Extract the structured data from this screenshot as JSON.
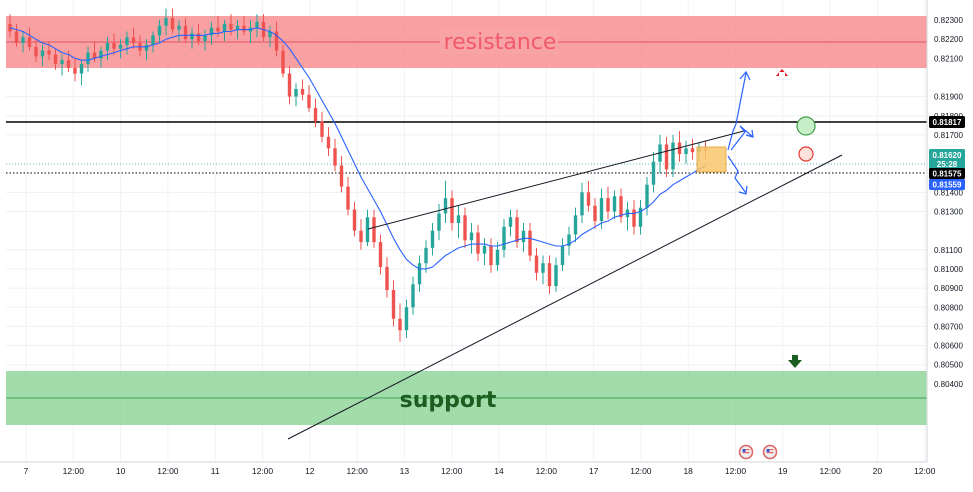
{
  "chart_data": {
    "type": "candlestick",
    "title": "",
    "ylim": [
      0.8038,
      0.8236
    ],
    "y_ticks": [
      "0.82300",
      "0.82200",
      "0.82100",
      "0.81900",
      "0.81800",
      "0.81700",
      "0.81400",
      "0.81300",
      "0.81100",
      "0.81000",
      "0.80900",
      "0.80800",
      "0.80700",
      "0.80600",
      "0.80500",
      "0.80400"
    ],
    "y_tick_values": [
      0.823,
      0.822,
      0.821,
      0.819,
      0.818,
      0.817,
      0.814,
      0.813,
      0.811,
      0.81,
      0.809,
      0.808,
      0.807,
      0.806,
      0.805,
      0.804
    ],
    "x_ticks": [
      "7",
      "12:00",
      "10",
      "12:00",
      "11",
      "12:00",
      "12",
      "12:00",
      "13",
      "12:00",
      "14",
      "12:00",
      "17",
      "12:00",
      "18",
      "12:00",
      "19",
      "12:00",
      "20",
      "12:00"
    ],
    "zones": [
      {
        "name": "resistance",
        "label": "resistance",
        "from": 0.8209,
        "to": 0.8234,
        "color": "#f77c80",
        "text_color": "#f05a6a"
      },
      {
        "name": "support",
        "label": "support",
        "from": 0.8039,
        "to": 0.8066,
        "color": "#7fce8a",
        "text_color": "#1b5e20"
      }
    ],
    "levels": [
      {
        "name": "key-level",
        "value": 0.81817,
        "label": "0.81817",
        "color": "#000000",
        "style": "solid"
      },
      {
        "name": "last-close",
        "value": 0.81575,
        "label": "0.81575",
        "color": "#000000",
        "style": "dotted"
      }
    ],
    "price_tags": [
      {
        "name": "current-price",
        "value": 0.8162,
        "label": "0.81620",
        "sub": "25:28",
        "color": "#26a69a"
      },
      {
        "name": "ma-value",
        "value": 0.81559,
        "label": "0.81559",
        "color": "#2962ff"
      }
    ],
    "series": [
      {
        "name": "candles",
        "ohlc": [
          [
            0.8228,
            0.8233,
            0.8221,
            0.8224
          ],
          [
            0.8224,
            0.8228,
            0.8216,
            0.8218
          ],
          [
            0.8218,
            0.8224,
            0.8213,
            0.8221
          ],
          [
            0.8221,
            0.8226,
            0.8214,
            0.8216
          ],
          [
            0.8216,
            0.822,
            0.8208,
            0.8211
          ],
          [
            0.8211,
            0.8217,
            0.8206,
            0.8214
          ],
          [
            0.8214,
            0.8219,
            0.8209,
            0.8212
          ],
          [
            0.8212,
            0.8215,
            0.8204,
            0.8207
          ],
          [
            0.8207,
            0.8212,
            0.8201,
            0.8209
          ],
          [
            0.8209,
            0.8214,
            0.8203,
            0.8205
          ],
          [
            0.8205,
            0.821,
            0.8198,
            0.8202
          ],
          [
            0.8202,
            0.8209,
            0.8196,
            0.8207
          ],
          [
            0.8207,
            0.8216,
            0.8203,
            0.8213
          ],
          [
            0.8213,
            0.8219,
            0.8208,
            0.821
          ],
          [
            0.821,
            0.8216,
            0.8205,
            0.8214
          ],
          [
            0.8214,
            0.8221,
            0.8209,
            0.8218
          ],
          [
            0.8218,
            0.8223,
            0.8212,
            0.8215
          ],
          [
            0.8215,
            0.822,
            0.821,
            0.8217
          ],
          [
            0.8217,
            0.8224,
            0.8212,
            0.8221
          ],
          [
            0.8221,
            0.8226,
            0.8215,
            0.8218
          ],
          [
            0.8218,
            0.8222,
            0.8211,
            0.8214
          ],
          [
            0.8214,
            0.822,
            0.8209,
            0.8217
          ],
          [
            0.8217,
            0.8224,
            0.8213,
            0.8222
          ],
          [
            0.8222,
            0.823,
            0.8218,
            0.8227
          ],
          [
            0.8227,
            0.8236,
            0.8222,
            0.8231
          ],
          [
            0.8231,
            0.8236,
            0.8223,
            0.8225
          ],
          [
            0.8225,
            0.823,
            0.8219,
            0.8227
          ],
          [
            0.8227,
            0.8231,
            0.8218,
            0.822
          ],
          [
            0.822,
            0.8226,
            0.8215,
            0.8223
          ],
          [
            0.8223,
            0.8228,
            0.8217,
            0.8219
          ],
          [
            0.8219,
            0.8225,
            0.8214,
            0.8222
          ],
          [
            0.8222,
            0.8229,
            0.8217,
            0.8226
          ],
          [
            0.8226,
            0.8232,
            0.8221,
            0.8224
          ],
          [
            0.8224,
            0.823,
            0.8219,
            0.8228
          ],
          [
            0.8228,
            0.8233,
            0.8222,
            0.8225
          ],
          [
            0.8225,
            0.823,
            0.822,
            0.8227
          ],
          [
            0.8227,
            0.8232,
            0.8222,
            0.8224
          ],
          [
            0.8224,
            0.823,
            0.8218,
            0.8226
          ],
          [
            0.8226,
            0.8233,
            0.8221,
            0.8229
          ],
          [
            0.8229,
            0.8233,
            0.8219,
            0.8221
          ],
          [
            0.8221,
            0.8227,
            0.8216,
            0.8224
          ],
          [
            0.8224,
            0.8229,
            0.8211,
            0.8214
          ],
          [
            0.8214,
            0.8217,
            0.82,
            0.8202
          ],
          [
            0.8202,
            0.8206,
            0.8186,
            0.819
          ],
          [
            0.819,
            0.8197,
            0.8185,
            0.8194
          ],
          [
            0.8194,
            0.8199,
            0.8188,
            0.8191
          ],
          [
            0.8191,
            0.8196,
            0.8182,
            0.8184
          ],
          [
            0.8184,
            0.8189,
            0.8174,
            0.8177
          ],
          [
            0.8177,
            0.8182,
            0.8166,
            0.8169
          ],
          [
            0.8169,
            0.8174,
            0.8159,
            0.8163
          ],
          [
            0.8163,
            0.8168,
            0.8151,
            0.8154
          ],
          [
            0.8154,
            0.8159,
            0.814,
            0.8143
          ],
          [
            0.8143,
            0.8148,
            0.8128,
            0.8131
          ],
          [
            0.8131,
            0.8135,
            0.8117,
            0.812
          ],
          [
            0.812,
            0.8126,
            0.811,
            0.8114
          ],
          [
            0.8114,
            0.8131,
            0.8112,
            0.8127
          ],
          [
            0.8127,
            0.8131,
            0.8111,
            0.8114
          ],
          [
            0.8114,
            0.8118,
            0.8097,
            0.8101
          ],
          [
            0.8101,
            0.8106,
            0.8085,
            0.8089
          ],
          [
            0.8089,
            0.8094,
            0.807,
            0.8074
          ],
          [
            0.8074,
            0.8082,
            0.8062,
            0.8068
          ],
          [
            0.8068,
            0.8084,
            0.8064,
            0.808
          ],
          [
            0.808,
            0.8096,
            0.8076,
            0.8092
          ],
          [
            0.8092,
            0.8107,
            0.8088,
            0.8103
          ],
          [
            0.8103,
            0.8115,
            0.8098,
            0.8111
          ],
          [
            0.8111,
            0.8124,
            0.8107,
            0.812
          ],
          [
            0.812,
            0.8134,
            0.8115,
            0.8129
          ],
          [
            0.8129,
            0.8146,
            0.8124,
            0.8137
          ],
          [
            0.8137,
            0.8141,
            0.812,
            0.8124
          ],
          [
            0.8124,
            0.8133,
            0.8116,
            0.8128
          ],
          [
            0.8128,
            0.8132,
            0.8111,
            0.8115
          ],
          [
            0.8115,
            0.8124,
            0.8108,
            0.8119
          ],
          [
            0.8119,
            0.8123,
            0.8104,
            0.8108
          ],
          [
            0.8108,
            0.8116,
            0.8102,
            0.8112
          ],
          [
            0.8112,
            0.8116,
            0.8098,
            0.8102
          ],
          [
            0.8102,
            0.8114,
            0.8099,
            0.811
          ],
          [
            0.811,
            0.8126,
            0.8106,
            0.8122
          ],
          [
            0.8122,
            0.8131,
            0.8117,
            0.8127
          ],
          [
            0.8127,
            0.8131,
            0.8111,
            0.8114
          ],
          [
            0.8114,
            0.8124,
            0.8109,
            0.812
          ],
          [
            0.812,
            0.8124,
            0.8104,
            0.8107
          ],
          [
            0.8107,
            0.8111,
            0.8094,
            0.8098
          ],
          [
            0.8098,
            0.8107,
            0.8092,
            0.8103
          ],
          [
            0.8103,
            0.8107,
            0.8087,
            0.8091
          ],
          [
            0.8091,
            0.8106,
            0.8088,
            0.8102
          ],
          [
            0.8102,
            0.8116,
            0.8099,
            0.8112
          ],
          [
            0.8112,
            0.8122,
            0.8107,
            0.8118
          ],
          [
            0.8118,
            0.8132,
            0.8114,
            0.8128
          ],
          [
            0.8128,
            0.8145,
            0.8124,
            0.814
          ],
          [
            0.814,
            0.8146,
            0.813,
            0.8133
          ],
          [
            0.8133,
            0.8137,
            0.8121,
            0.8125
          ],
          [
            0.8125,
            0.8142,
            0.8121,
            0.8137
          ],
          [
            0.8137,
            0.8143,
            0.8126,
            0.813
          ],
          [
            0.813,
            0.8141,
            0.8126,
            0.8138
          ],
          [
            0.8138,
            0.8142,
            0.8124,
            0.8127
          ],
          [
            0.8127,
            0.8135,
            0.812,
            0.8131
          ],
          [
            0.8131,
            0.8136,
            0.8118,
            0.8122
          ],
          [
            0.8122,
            0.8136,
            0.8118,
            0.8132
          ],
          [
            0.8132,
            0.8148,
            0.8128,
            0.8144
          ],
          [
            0.8144,
            0.8161,
            0.814,
            0.8156
          ],
          [
            0.8156,
            0.817,
            0.815,
            0.8165
          ],
          [
            0.8165,
            0.8169,
            0.8148,
            0.8152
          ],
          [
            0.8152,
            0.817,
            0.8148,
            0.8166
          ],
          [
            0.8166,
            0.8172,
            0.8156,
            0.816
          ],
          [
            0.816,
            0.8167,
            0.8155,
            0.8163
          ],
          [
            0.8163,
            0.8168,
            0.8157,
            0.8161
          ],
          [
            0.8161,
            0.8166,
            0.8156,
            0.8163
          ],
          [
            0.8163,
            0.8167,
            0.8157,
            0.8162
          ]
        ]
      },
      {
        "name": "moving-average",
        "color": "#2962ff",
        "values": [
          0.8226,
          0.8225,
          0.8224,
          0.8222,
          0.822,
          0.8218,
          0.8217,
          0.8215,
          0.8213,
          0.8212,
          0.821,
          0.8209,
          0.8209,
          0.821,
          0.8211,
          0.8212,
          0.8213,
          0.8214,
          0.8215,
          0.8216,
          0.8216,
          0.8216,
          0.8217,
          0.8218,
          0.822,
          0.8221,
          0.8222,
          0.8222,
          0.8222,
          0.8222,
          0.8222,
          0.8223,
          0.8223,
          0.8224,
          0.8224,
          0.8225,
          0.8225,
          0.8225,
          0.8226,
          0.8225,
          0.8224,
          0.8222,
          0.8219,
          0.8215,
          0.821,
          0.8205,
          0.82,
          0.8194,
          0.8188,
          0.8182,
          0.8176,
          0.8169,
          0.8162,
          0.8155,
          0.8148,
          0.8142,
          0.8136,
          0.813,
          0.8123,
          0.8116,
          0.811,
          0.8105,
          0.8102,
          0.81,
          0.81,
          0.8101,
          0.8104,
          0.8107,
          0.8109,
          0.8111,
          0.8112,
          0.8113,
          0.8113,
          0.8113,
          0.8112,
          0.8112,
          0.8113,
          0.8114,
          0.8115,
          0.8116,
          0.8116,
          0.8115,
          0.8114,
          0.8113,
          0.8112,
          0.8112,
          0.8113,
          0.8115,
          0.8118,
          0.812,
          0.8122,
          0.8124,
          0.8125,
          0.8127,
          0.8128,
          0.8129,
          0.8129,
          0.813,
          0.8132,
          0.8135,
          0.8139,
          0.8141,
          0.8144,
          0.8146,
          0.8148,
          0.815,
          0.8152,
          0.8154
        ]
      }
    ]
  }
}
